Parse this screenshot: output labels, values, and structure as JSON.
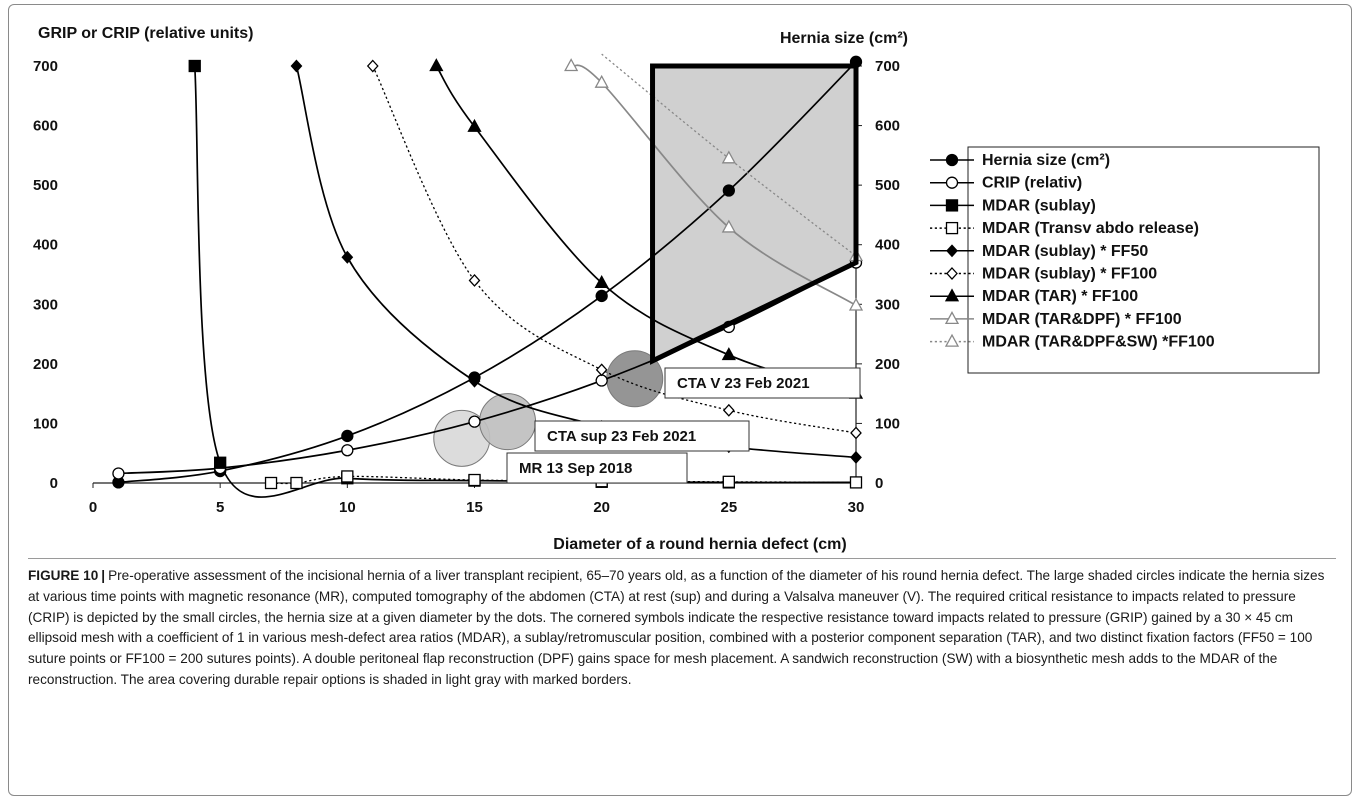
{
  "chart_data": {
    "type": "line",
    "y_left_title": "GRIP or CRIP (relative units)",
    "y_right_title": "Hernia size (cm²)",
    "xlabel": "Diameter of a round hernia defect (cm)",
    "xlim": [
      0,
      30
    ],
    "ylim": [
      0,
      700
    ],
    "x_ticks": [
      "0",
      "5",
      "10",
      "15",
      "20",
      "25",
      "30"
    ],
    "y_ticks": [
      "0",
      "100",
      "200",
      "300",
      "400",
      "500",
      "600",
      "700"
    ],
    "legend_position": "right",
    "series": [
      {
        "name": "Hernia size (cm²)",
        "marker": "filled-circle",
        "line": "solid",
        "color": "#000000",
        "x": [
          1,
          5,
          10,
          15,
          20,
          25,
          30
        ],
        "y": [
          1,
          20,
          79,
          177,
          314,
          491,
          707
        ]
      },
      {
        "name": "CRIP (relativ)",
        "marker": "open-circle",
        "line": "solid",
        "color": "#000000",
        "x": [
          1,
          5,
          10,
          15,
          20,
          25,
          30
        ],
        "y": [
          16,
          25,
          55,
          103,
          172,
          262,
          370
        ]
      },
      {
        "name": "MDAR (sublay)",
        "marker": "filled-square",
        "line": "solid",
        "color": "#000000",
        "x": [
          4,
          5,
          10,
          15,
          20,
          25,
          30
        ],
        "y": [
          700,
          34,
          8,
          4,
          2,
          1,
          1
        ]
      },
      {
        "name": "MDAR (Transv abdo release)",
        "marker": "open-square",
        "line": "dotted",
        "color": "#000000",
        "x": [
          7,
          8,
          10,
          15,
          20,
          25,
          30
        ],
        "y": [
          0,
          0,
          11,
          5,
          3,
          2,
          1
        ]
      },
      {
        "name": "MDAR (sublay) * FF50",
        "marker": "filled-diamond",
        "line": "solid",
        "color": "#000000",
        "x": [
          8,
          10,
          15,
          20,
          25,
          30
        ],
        "y": [
          700,
          379,
          171,
          95,
          61,
          43
        ]
      },
      {
        "name": "MDAR (sublay) * FF100",
        "marker": "open-diamond",
        "line": "dotted",
        "color": "#000000",
        "x": [
          11,
          15,
          20,
          25,
          30
        ],
        "y": [
          700,
          340,
          190,
          122,
          84
        ]
      },
      {
        "name": "MDAR (TAR) * FF100",
        "marker": "filled-triangle",
        "line": "solid",
        "color": "#000000",
        "x": [
          13.5,
          15,
          20,
          25,
          30
        ],
        "y": [
          700,
          598,
          336,
          215,
          150
        ]
      },
      {
        "name": "MDAR (TAR&DPF) * FF100",
        "marker": "open-triangle",
        "line": "solid",
        "color": "#888888",
        "x": [
          18.8,
          20,
          25,
          30
        ],
        "y": [
          700,
          672,
          429,
          298
        ]
      },
      {
        "name": "MDAR (TAR&DPF&SW) *FF100",
        "marker": "open-triangle",
        "line": "dotted",
        "color": "#888888",
        "x": [
          20,
          25,
          30
        ],
        "y": [
          720,
          545,
          381
        ]
      }
    ],
    "bubbles": [
      {
        "label": "MR 13 Sep 2018",
        "x": 14.5,
        "y": 75,
        "color": "#d9d9d9"
      },
      {
        "label": "CTA sup 23 Feb 2021",
        "x": 16.3,
        "y": 103,
        "color": "#bfbfbf"
      },
      {
        "label": "CTA V 23 Feb 2021",
        "x": 21.3,
        "y": 175,
        "color": "#8c8c8c"
      }
    ],
    "shaded_region": {
      "description": "area covering durable repair options",
      "color": "#d0d0d0",
      "points": [
        [
          22,
          700
        ],
        [
          30,
          700
        ],
        [
          30,
          370
        ],
        [
          22,
          205
        ]
      ]
    }
  },
  "caption": {
    "label": "FIGURE 10",
    "separator": "|",
    "text": "Pre-operative assessment of the incisional hernia of a liver transplant recipient, 65–70 years old, as a function of the diameter of his round hernia defect. The large shaded circles indicate the hernia sizes at various time points with magnetic resonance (MR), computed tomography of the abdomen (CTA) at rest (sup) and during a Valsalva maneuver (V). The required critical resistance to impacts related to pressure (CRIP) is depicted by the small circles, the hernia size at a given diameter by the dots. The cornered symbols indicate the respective resistance toward impacts related to pressure (GRIP) gained by a 30 × 45 cm ellipsoid mesh with a coefficient of 1 in various mesh-defect area ratios (MDAR), a sublay/retromuscular position, combined with a posterior component separation (TAR), and two distinct fixation factors (FF50 = 100 suture points or FF100 = 200 sutures points). A double peritoneal flap reconstruction (DPF) gains space for mesh placement. A sandwich reconstruction (SW) with a biosynthetic mesh adds to the MDAR of the reconstruction. The area covering durable repair options is shaded in light gray with marked borders."
  }
}
